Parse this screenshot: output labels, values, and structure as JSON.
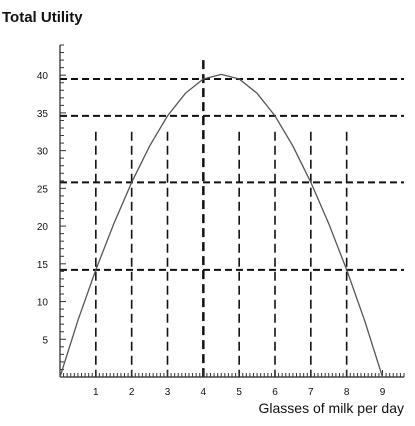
{
  "chart_data": {
    "type": "line",
    "title": "Total Utility",
    "xlabel": "Glasses of milk per day",
    "ylabel": "",
    "xlim": [
      0,
      9.6
    ],
    "ylim": [
      0,
      44
    ],
    "x_ticks": [
      "1",
      "2",
      "3",
      "4",
      "5",
      "6",
      "7",
      "8",
      "9"
    ],
    "y_ticks": [
      "5",
      "10",
      "15",
      "20",
      "25",
      "30",
      "35",
      "40"
    ],
    "series": [
      {
        "x": [
          0,
          0.5,
          1,
          1.5,
          2,
          2.5,
          3,
          3.5,
          4,
          4.5,
          5,
          5.5,
          6,
          6.5,
          7,
          7.5,
          8,
          8.5,
          9
        ],
        "y": [
          0,
          7.5,
          14.2,
          20.3,
          25.8,
          30.6,
          34.6,
          37.6,
          39.5,
          40.1,
          39.5,
          37.6,
          34.6,
          30.6,
          25.8,
          20.3,
          14.2,
          7.5,
          0
        ]
      }
    ],
    "horizontal_reference_lines": [
      14.2,
      25.8,
      34.6,
      39.5
    ],
    "vertical_reference_lines": [
      1,
      2,
      3,
      4,
      5,
      6,
      7,
      8
    ],
    "grid": false,
    "line_color": "#555555",
    "dash_color": "#111111"
  }
}
